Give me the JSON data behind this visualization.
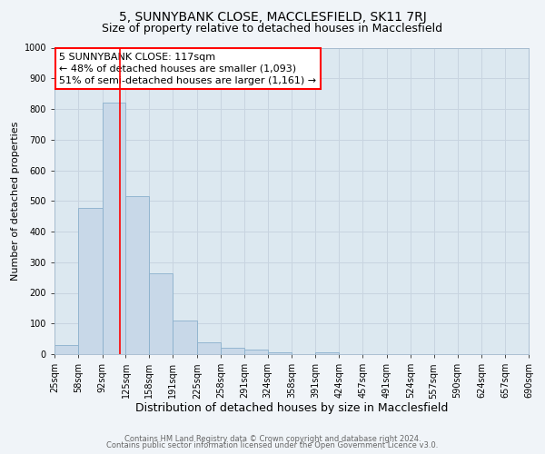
{
  "title": "5, SUNNYBANK CLOSE, MACCLESFIELD, SK11 7RJ",
  "subtitle": "Size of property relative to detached houses in Macclesfield",
  "xlabel": "Distribution of detached houses by size in Macclesfield",
  "ylabel": "Number of detached properties",
  "bar_edges": [
    25,
    58,
    92,
    125,
    158,
    191,
    225,
    258,
    291,
    324,
    358,
    391,
    424,
    457,
    491,
    524,
    557,
    590,
    624,
    657,
    690
  ],
  "bar_heights": [
    30,
    478,
    820,
    515,
    263,
    110,
    40,
    20,
    15,
    5,
    0,
    7,
    0,
    0,
    0,
    0,
    0,
    0,
    0,
    0
  ],
  "bar_color": "#c8d8e8",
  "bar_edgecolor": "#8ab0cc",
  "bar_linewidth": 0.6,
  "vline_x": 117,
  "vline_color": "red",
  "vline_linewidth": 1.2,
  "annotation_line1": "5 SUNNYBANK CLOSE: 117sqm",
  "annotation_line2": "← 48% of detached houses are smaller (1,093)",
  "annotation_line3": "51% of semi-detached houses are larger (1,161) →",
  "ylim": [
    0,
    1000
  ],
  "yticks": [
    0,
    100,
    200,
    300,
    400,
    500,
    600,
    700,
    800,
    900,
    1000
  ],
  "xtick_labels": [
    "25sqm",
    "58sqm",
    "92sqm",
    "125sqm",
    "158sqm",
    "191sqm",
    "225sqm",
    "258sqm",
    "291sqm",
    "324sqm",
    "358sqm",
    "391sqm",
    "424sqm",
    "457sqm",
    "491sqm",
    "524sqm",
    "557sqm",
    "590sqm",
    "624sqm",
    "657sqm",
    "690sqm"
  ],
  "grid_color": "#c8d4e0",
  "plot_bg_color": "#dce8f0",
  "fig_bg_color": "#f0f4f8",
  "footer_line1": "Contains HM Land Registry data © Crown copyright and database right 2024.",
  "footer_line2": "Contains public sector information licensed under the Open Government Licence v3.0.",
  "title_fontsize": 10,
  "subtitle_fontsize": 9,
  "xlabel_fontsize": 9,
  "ylabel_fontsize": 8,
  "tick_fontsize": 7,
  "footer_fontsize": 6,
  "annotation_fontsize": 8
}
